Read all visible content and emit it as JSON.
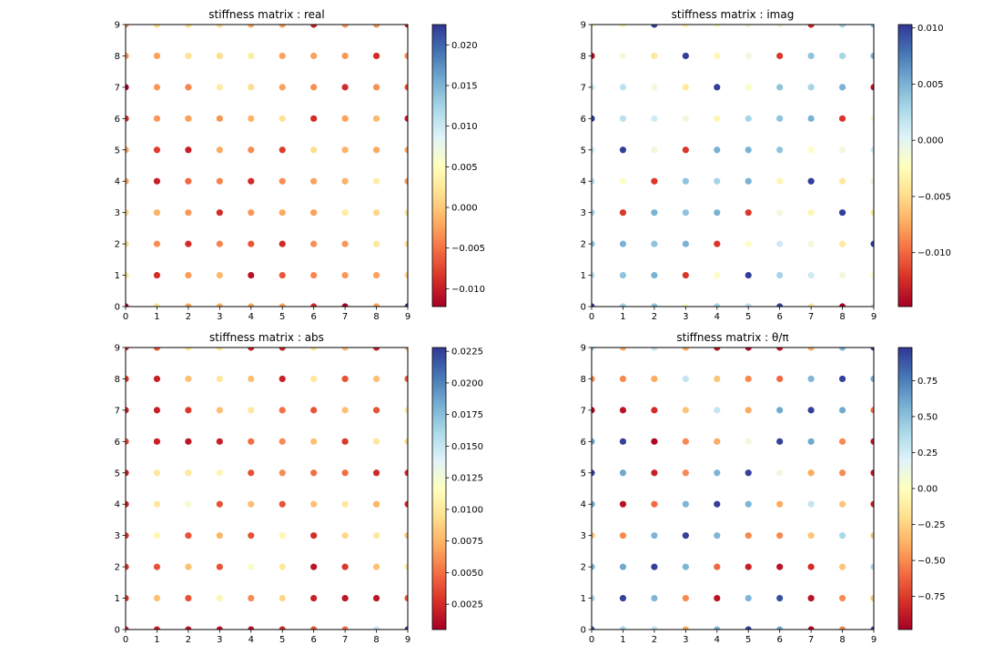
{
  "chart_data": [
    {
      "type": "scatter",
      "title": "stiffness matrix : real",
      "xlabel": "",
      "ylabel": "",
      "xlim": [
        0,
        9
      ],
      "ylim": [
        0,
        9
      ],
      "x_ticks": [
        "0",
        "1",
        "2",
        "3",
        "4",
        "5",
        "6",
        "7",
        "8",
        "9"
      ],
      "y_ticks": [
        "0",
        "1",
        "2",
        "3",
        "4",
        "5",
        "6",
        "7",
        "8",
        "9"
      ],
      "grid": false,
      "colormap": "RdYlBu",
      "colorbar": {
        "min": -0.0122,
        "max": 0.0225,
        "ticks": [
          {
            "value": -0.01,
            "label": "−0.010"
          },
          {
            "value": -0.005,
            "label": "−0.005"
          },
          {
            "value": 0.0,
            "label": "0.000"
          },
          {
            "value": 0.005,
            "label": "0.005"
          },
          {
            "value": 0.01,
            "label": "0.010"
          },
          {
            "value": 0.015,
            "label": "0.015"
          },
          {
            "value": 0.02,
            "label": "0.020"
          }
        ]
      },
      "rows": [
        [
          -0.0122,
          0.0022,
          -0.0022,
          -0.0018,
          -0.002,
          -0.0022,
          -0.009,
          -0.0122,
          -0.0025,
          0.0225
        ],
        [
          0.0022,
          -0.009,
          -0.0028,
          -0.001,
          -0.011,
          -0.0065,
          -0.004,
          -0.003,
          -0.0025,
          0.001
        ],
        [
          0.0015,
          -0.0035,
          -0.009,
          -0.004,
          -0.0065,
          -0.009,
          -0.0035,
          -0.003,
          0.0025,
          0.0015
        ],
        [
          0.001,
          -0.0015,
          -0.003,
          -0.009,
          -0.003,
          -0.002,
          -0.0025,
          0.003,
          0.001,
          0.002
        ],
        [
          -0.0025,
          -0.01,
          -0.0055,
          -0.004,
          -0.009,
          -0.0035,
          -0.0025,
          -0.0015,
          0.003,
          -0.003
        ],
        [
          -0.0025,
          -0.008,
          -0.01,
          -0.002,
          -0.0035,
          -0.008,
          0.0015,
          -0.0015,
          -0.002,
          -0.0025
        ],
        [
          -0.009,
          -0.003,
          -0.0025,
          -0.003,
          -0.0015,
          0.002,
          -0.009,
          -0.0025,
          -0.001,
          -0.01
        ],
        [
          -0.0122,
          -0.003,
          -0.004,
          0.003,
          0.0015,
          -0.0025,
          -0.0035,
          -0.009,
          -0.0035,
          -0.007
        ],
        [
          -0.003,
          -0.0025,
          0.002,
          0.0015,
          0.003,
          -0.0025,
          -0.0025,
          -0.003,
          -0.009,
          -0.004
        ],
        [
          -0.003,
          0.0015,
          0.0015,
          0.0015,
          -0.002,
          -0.0025,
          -0.01,
          -0.003,
          -0.003,
          -0.01
        ]
      ]
    },
    {
      "type": "scatter",
      "title": "stiffness matrix : imag",
      "xlabel": "",
      "ylabel": "",
      "xlim": [
        0,
        9
      ],
      "ylim": [
        0,
        9
      ],
      "x_ticks": [
        "0",
        "1",
        "2",
        "3",
        "4",
        "5",
        "6",
        "7",
        "8",
        "9"
      ],
      "y_ticks": [
        "0",
        "1",
        "2",
        "3",
        "4",
        "5",
        "6",
        "7",
        "8",
        "9"
      ],
      "grid": false,
      "colormap": "RdYlBu",
      "colorbar": {
        "min": -0.0148,
        "max": 0.0103,
        "ticks": [
          {
            "value": -0.01,
            "label": "−0.010"
          },
          {
            "value": -0.005,
            "label": "−0.005"
          },
          {
            "value": 0.0,
            "label": "0.000"
          },
          {
            "value": 0.005,
            "label": "0.005"
          },
          {
            "value": 0.01,
            "label": "0.010"
          }
        ]
      },
      "rows": [
        [
          0.01,
          0.003,
          0.004,
          -0.002,
          0.003,
          0.002,
          0.01,
          -0.004,
          -0.0148,
          0.001
        ],
        [
          0.002,
          0.004,
          0.005,
          -0.012,
          -0.002,
          0.01,
          0.003,
          0.001,
          -0.001,
          -0.002
        ],
        [
          0.004,
          0.005,
          0.004,
          0.005,
          -0.012,
          -0.002,
          0.001,
          -0.001,
          -0.004,
          0.01
        ],
        [
          0.003,
          -0.012,
          0.005,
          0.004,
          0.005,
          -0.012,
          -0.001,
          -0.003,
          0.01,
          -0.004
        ],
        [
          0.002,
          -0.002,
          -0.012,
          0.004,
          0.003,
          0.005,
          -0.003,
          0.01,
          -0.004,
          -0.001
        ],
        [
          0.001,
          0.01,
          -0.001,
          -0.012,
          0.005,
          0.005,
          0.004,
          -0.002,
          -0.001,
          0.001
        ],
        [
          0.01,
          0.002,
          0.001,
          -0.001,
          -0.003,
          0.003,
          0.004,
          0.005,
          -0.012,
          -0.001
        ],
        [
          0.001,
          0.002,
          -0.001,
          -0.004,
          0.01,
          -0.002,
          0.004,
          0.003,
          0.005,
          -0.014
        ],
        [
          -0.014,
          -0.001,
          -0.004,
          0.01,
          -0.003,
          -0.001,
          -0.012,
          0.004,
          0.003,
          0.005
        ],
        [
          -0.002,
          -0.003,
          0.01,
          -0.003,
          -0.002,
          -0.001,
          -0.001,
          -0.013,
          0.003,
          0.004
        ]
      ]
    },
    {
      "type": "scatter",
      "title": "stiffness matrix : abs",
      "xlabel": "",
      "ylabel": "",
      "xlim": [
        0,
        9
      ],
      "ylim": [
        0,
        9
      ],
      "x_ticks": [
        "0",
        "1",
        "2",
        "3",
        "4",
        "5",
        "6",
        "7",
        "8",
        "9"
      ],
      "y_ticks": [
        "0",
        "1",
        "2",
        "3",
        "4",
        "5",
        "6",
        "7",
        "8",
        "9"
      ],
      "grid": false,
      "colormap": "RdYlBu",
      "colorbar": {
        "min": 0.0005,
        "max": 0.0228,
        "ticks": [
          {
            "value": 0.0025,
            "label": "0.0025"
          },
          {
            "value": 0.005,
            "label": "0.0050"
          },
          {
            "value": 0.0075,
            "label": "0.0075"
          },
          {
            "value": 0.01,
            "label": "0.0100"
          },
          {
            "value": 0.0125,
            "label": "0.0125"
          },
          {
            "value": 0.015,
            "label": "0.0150"
          },
          {
            "value": 0.0175,
            "label": "0.0175"
          },
          {
            "value": 0.02,
            "label": "0.0200"
          },
          {
            "value": 0.0225,
            "label": "0.0225"
          }
        ]
      },
      "rows": [
        [
          0.002,
          0.002,
          0.0015,
          0.0015,
          0.0015,
          0.0025,
          0.004,
          0.005,
          0.015,
          0.0225
        ],
        [
          0.003,
          0.008,
          0.004,
          0.011,
          0.006,
          0.009,
          0.002,
          0.0015,
          0.0015,
          0.004
        ],
        [
          0.003,
          0.004,
          0.008,
          0.004,
          0.012,
          0.01,
          0.0015,
          0.003,
          0.008,
          0.01
        ],
        [
          0.003,
          0.011,
          0.004,
          0.0075,
          0.004,
          0.011,
          0.0025,
          0.009,
          0.01,
          0.008
        ],
        [
          0.002,
          0.01,
          0.0125,
          0.004,
          0.008,
          0.004,
          0.008,
          0.01,
          0.0075,
          0.0025
        ],
        [
          0.002,
          0.01,
          0.01,
          0.011,
          0.004,
          0.006,
          0.005,
          0.005,
          0.0025,
          0.0025
        ],
        [
          0.0035,
          0.002,
          0.0015,
          0.002,
          0.005,
          0.006,
          0.008,
          0.003,
          0.01,
          0.009
        ],
        [
          0.002,
          0.002,
          0.003,
          0.008,
          0.01,
          0.005,
          0.004,
          0.008,
          0.004,
          0.01
        ],
        [
          0.003,
          0.002,
          0.008,
          0.01,
          0.008,
          0.002,
          0.01,
          0.004,
          0.008,
          0.004
        ],
        [
          0.003,
          0.004,
          0.01,
          0.01,
          0.002,
          0.002,
          0.01,
          0.008,
          0.002,
          0.008
        ]
      ]
    },
    {
      "type": "scatter",
      "title": "stiffness matrix : θ/π",
      "xlabel": "",
      "ylabel": "",
      "xlim": [
        0,
        9
      ],
      "ylim": [
        0,
        9
      ],
      "x_ticks": [
        "0",
        "1",
        "2",
        "3",
        "4",
        "5",
        "6",
        "7",
        "8",
        "9"
      ],
      "y_ticks": [
        "0",
        "1",
        "2",
        "3",
        "4",
        "5",
        "6",
        "7",
        "8",
        "9"
      ],
      "grid": false,
      "colormap": "RdYlBu",
      "colorbar": {
        "min": -0.98,
        "max": 0.98,
        "ticks": [
          {
            "value": -0.75,
            "label": "−0.75"
          },
          {
            "value": -0.5,
            "label": "−0.50"
          },
          {
            "value": -0.25,
            "label": "−0.25"
          },
          {
            "value": 0.0,
            "label": "0.00"
          },
          {
            "value": 0.25,
            "label": "0.25"
          },
          {
            "value": 0.5,
            "label": "0.50"
          },
          {
            "value": 0.75,
            "label": "0.75"
          }
        ]
      },
      "rows": [
        [
          0.9,
          0.4,
          0.3,
          -0.4,
          0.55,
          0.95,
          0.6,
          -0.95,
          -0.5,
          0.95
        ],
        [
          0.4,
          0.95,
          0.55,
          -0.5,
          -0.9,
          0.55,
          0.9,
          -0.9,
          -0.5,
          -0.3
        ],
        [
          0.55,
          0.6,
          0.95,
          0.55,
          -0.6,
          -0.85,
          -0.9,
          -0.8,
          -0.3,
          0.4
        ],
        [
          -0.3,
          -0.5,
          0.55,
          0.95,
          0.55,
          -0.5,
          -0.5,
          -0.3,
          0.4,
          -0.3
        ],
        [
          0.6,
          -0.9,
          -0.6,
          0.55,
          0.95,
          0.55,
          -0.4,
          0.3,
          -0.3,
          -0.85
        ],
        [
          0.95,
          0.6,
          -0.85,
          -0.5,
          0.55,
          0.95,
          0.1,
          -0.4,
          -0.5,
          -0.9
        ],
        [
          0.6,
          0.95,
          -0.95,
          -0.5,
          -0.4,
          0.1,
          0.95,
          0.6,
          -0.5,
          -0.9
        ],
        [
          -0.95,
          -0.9,
          -0.8,
          -0.3,
          0.3,
          -0.4,
          0.6,
          0.95,
          0.6,
          -0.6
        ],
        [
          -0.5,
          -0.5,
          -0.4,
          0.3,
          -0.3,
          -0.5,
          -0.6,
          0.55,
          0.95,
          0.6
        ],
        [
          0.4,
          -0.4,
          0.3,
          -0.4,
          -0.9,
          -0.95,
          -0.9,
          -0.4,
          0.55,
          0.95
        ]
      ]
    }
  ]
}
